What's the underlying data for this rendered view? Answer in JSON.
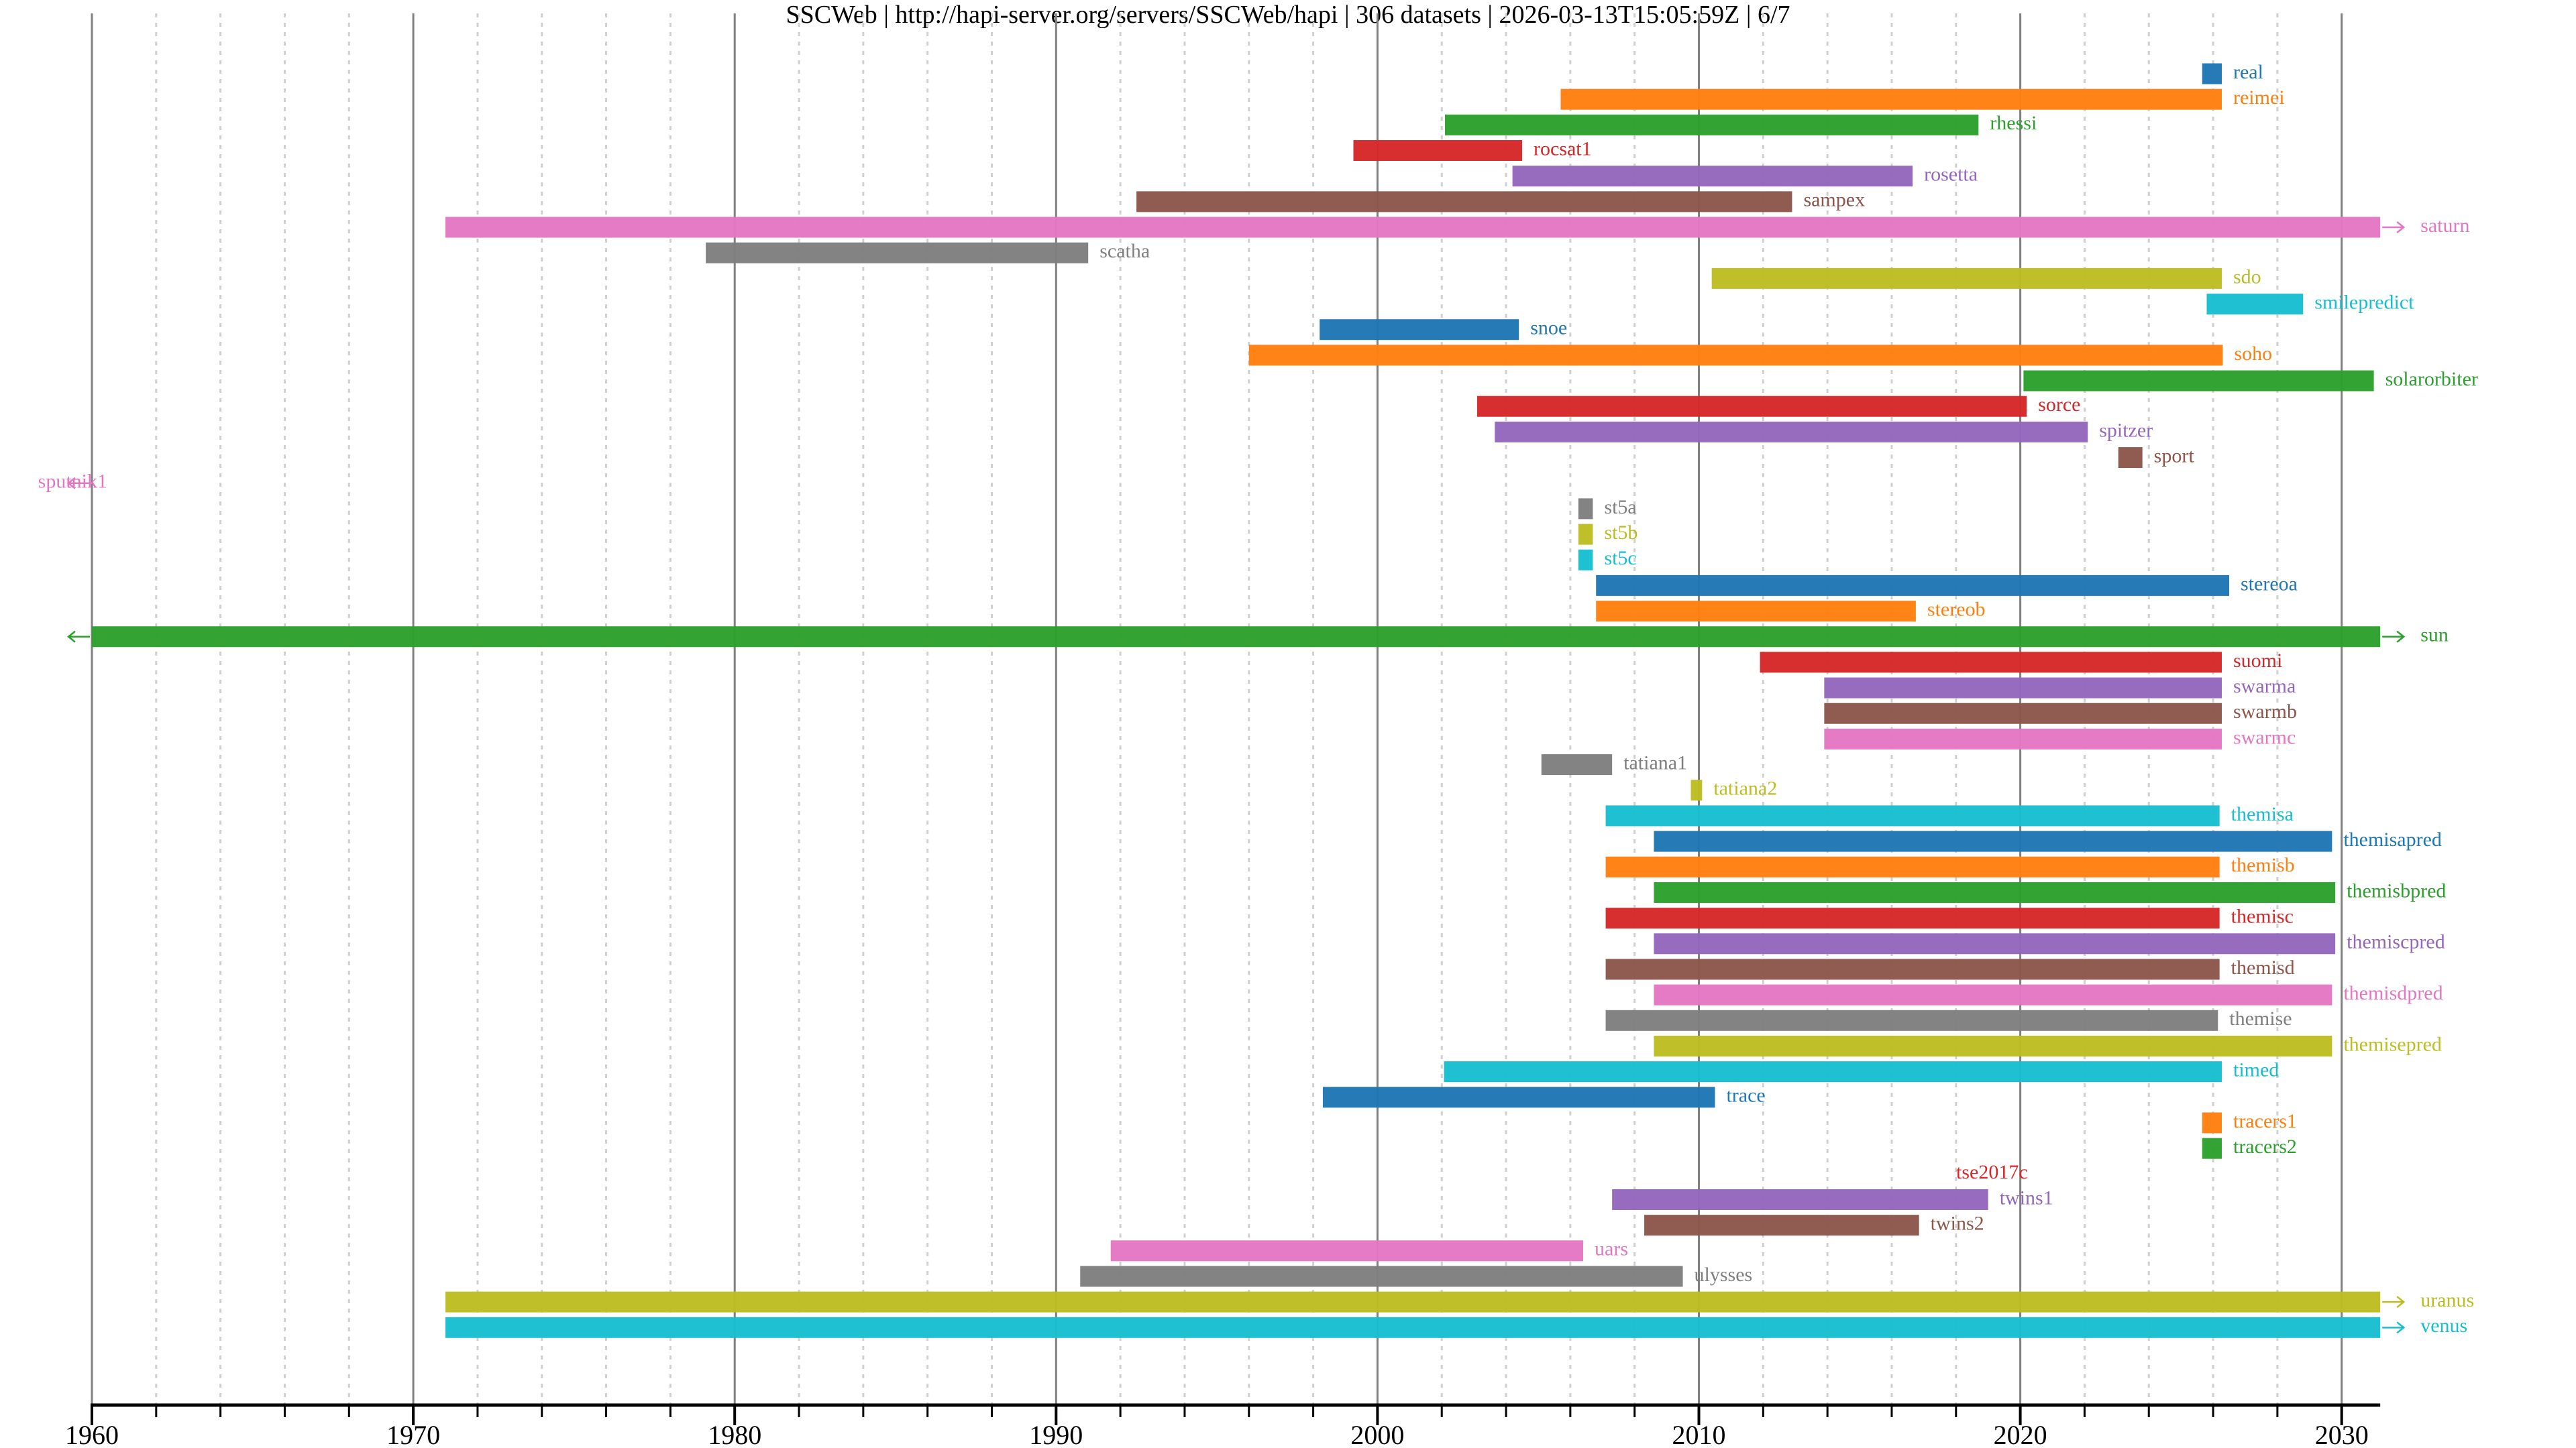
{
  "title": "SSCWeb | http://hapi-server.org/servers/SSCWeb/hapi | 306 datasets | 2026-03-13T15:05:59Z | 6/7",
  "chart_data": {
    "type": "bar",
    "orientation": "horizontal-timeline",
    "xlim": [
      1960,
      2031.2
    ],
    "x_ticks": [
      1960,
      1970,
      1980,
      1990,
      2000,
      2010,
      2020,
      2030
    ],
    "x_tick_labels": [
      "1960",
      "1970",
      "1980",
      "1990",
      "2000",
      "2010",
      "2020",
      "2030"
    ],
    "minor_grid_step_years": 2,
    "grid": true,
    "palette": [
      "#1f77b4",
      "#ff7f0e",
      "#2ca02c",
      "#d62728",
      "#9467bd",
      "#8c564b",
      "#e377c2",
      "#7f7f7f",
      "#bcbd22",
      "#17becf"
    ],
    "series": [
      {
        "name": "real",
        "start": 2025.66,
        "end": 2026.27
      },
      {
        "name": "reimei",
        "start": 2005.7,
        "end": 2026.27
      },
      {
        "name": "rhessi",
        "start": 2002.1,
        "end": 2018.7
      },
      {
        "name": "rocsat1",
        "start": 1999.25,
        "end": 2004.5
      },
      {
        "name": "rosetta",
        "start": 2004.2,
        "end": 2016.65
      },
      {
        "name": "sampex",
        "start": 1992.5,
        "end": 2012.9
      },
      {
        "name": "saturn",
        "start": 1971.0,
        "end": 2031.2,
        "arrow_right": true
      },
      {
        "name": "scatha",
        "start": 1979.1,
        "end": 1991.0
      },
      {
        "name": "sdo",
        "start": 2010.4,
        "end": 2026.27
      },
      {
        "name": "smilepredict",
        "start": 2025.8,
        "end": 2028.8
      },
      {
        "name": "snoe",
        "start": 1998.2,
        "end": 2004.4
      },
      {
        "name": "soho",
        "start": 1996.0,
        "end": 2026.3
      },
      {
        "name": "solarorbiter",
        "start": 2020.1,
        "end": 2031.0
      },
      {
        "name": "sorce",
        "start": 2003.1,
        "end": 2020.2
      },
      {
        "name": "spitzer",
        "start": 2003.65,
        "end": 2022.1
      },
      {
        "name": "sport",
        "start": 2023.05,
        "end": 2023.8
      },
      {
        "name": "sputnik1",
        "start": null,
        "end": null,
        "arrow_left": true
      },
      {
        "name": "st5a",
        "start": 2006.25,
        "end": 2006.7
      },
      {
        "name": "st5b",
        "start": 2006.25,
        "end": 2006.7
      },
      {
        "name": "st5c",
        "start": 2006.25,
        "end": 2006.7
      },
      {
        "name": "stereoa",
        "start": 2006.8,
        "end": 2026.5
      },
      {
        "name": "stereob",
        "start": 2006.8,
        "end": 2016.75
      },
      {
        "name": "sun",
        "start": 1960.0,
        "end": 2031.2,
        "arrow_left": true,
        "arrow_right": true
      },
      {
        "name": "suomi",
        "start": 2011.9,
        "end": 2026.27
      },
      {
        "name": "swarma",
        "start": 2013.9,
        "end": 2026.27
      },
      {
        "name": "swarmb",
        "start": 2013.9,
        "end": 2026.27
      },
      {
        "name": "swarmc",
        "start": 2013.9,
        "end": 2026.27
      },
      {
        "name": "tatiana1",
        "start": 2005.1,
        "end": 2007.3
      },
      {
        "name": "tatiana2",
        "start": 2009.75,
        "end": 2010.1
      },
      {
        "name": "themisa",
        "start": 2007.1,
        "end": 2026.2
      },
      {
        "name": "themisapred",
        "start": 2008.6,
        "end": 2029.7
      },
      {
        "name": "themisb",
        "start": 2007.1,
        "end": 2026.2
      },
      {
        "name": "themisbpred",
        "start": 2008.6,
        "end": 2029.8
      },
      {
        "name": "themisc",
        "start": 2007.1,
        "end": 2026.2
      },
      {
        "name": "themiscpred",
        "start": 2008.6,
        "end": 2029.8
      },
      {
        "name": "themisd",
        "start": 2007.1,
        "end": 2026.2
      },
      {
        "name": "themisdpred",
        "start": 2008.6,
        "end": 2029.7
      },
      {
        "name": "themise",
        "start": 2007.1,
        "end": 2026.15
      },
      {
        "name": "themisepred",
        "start": 2008.6,
        "end": 2029.7
      },
      {
        "name": "timed",
        "start": 2002.07,
        "end": 2026.27
      },
      {
        "name": "trace",
        "start": 1998.3,
        "end": 2010.5
      },
      {
        "name": "tracers1",
        "start": 2025.66,
        "end": 2026.27
      },
      {
        "name": "tracers2",
        "start": 2025.66,
        "end": 2026.27
      },
      {
        "name": "tse2017c",
        "start": 2017.65,
        "end": 2017.65
      },
      {
        "name": "twins1",
        "start": 2007.3,
        "end": 2019.0
      },
      {
        "name": "twins2",
        "start": 2008.3,
        "end": 2016.85
      },
      {
        "name": "uars",
        "start": 1991.7,
        "end": 2006.4
      },
      {
        "name": "ulysses",
        "start": 1990.75,
        "end": 2009.5
      },
      {
        "name": "uranus",
        "start": 1971.0,
        "end": 2031.2,
        "arrow_right": true
      },
      {
        "name": "venus",
        "start": 1971.0,
        "end": 2031.2,
        "arrow_right": true
      }
    ]
  }
}
